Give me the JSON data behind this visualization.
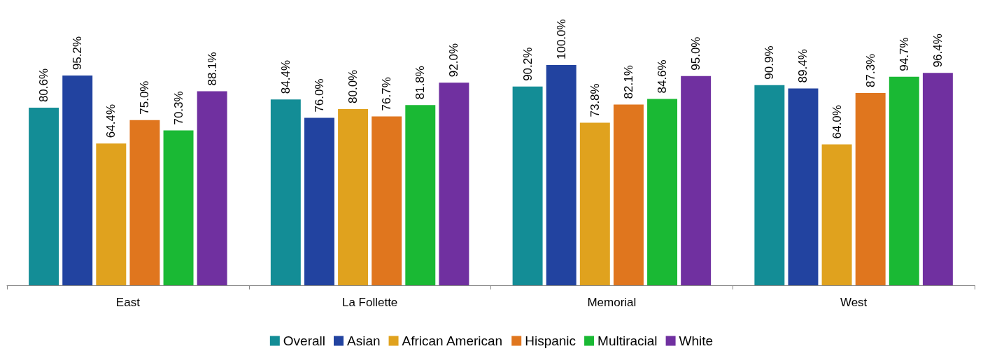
{
  "chart_data": {
    "type": "bar",
    "categories": [
      "East",
      "La Follette",
      "Memorial",
      "West"
    ],
    "series": [
      {
        "name": "Overall",
        "color": "#138d96",
        "values": [
          80.6,
          84.4,
          90.2,
          90.9
        ],
        "value_labels": [
          "80.6%",
          "84.4%",
          "90.2%",
          "90.9%"
        ]
      },
      {
        "name": "Asian",
        "color": "#2243a0",
        "values": [
          95.2,
          76.0,
          100.0,
          89.4
        ],
        "value_labels": [
          "95.2%",
          "76.0%",
          "100.0%",
          "89.4%"
        ]
      },
      {
        "name": "African American",
        "color": "#e0a21e",
        "values": [
          64.4,
          80.0,
          73.8,
          64.0
        ],
        "value_labels": [
          "64.4%",
          "80.0%",
          "73.8%",
          "64.0%"
        ]
      },
      {
        "name": "Hispanic",
        "color": "#e0761e",
        "values": [
          75.0,
          76.7,
          82.1,
          87.3
        ],
        "value_labels": [
          "75.0%",
          "76.7%",
          "82.1%",
          "87.3%"
        ]
      },
      {
        "name": "Multiracial",
        "color": "#1ab934",
        "values": [
          70.3,
          81.8,
          84.6,
          94.7
        ],
        "value_labels": [
          "70.3%",
          "81.8%",
          "84.6%",
          "94.7%"
        ]
      },
      {
        "name": "White",
        "color": "#7030a0",
        "values": [
          88.1,
          92.0,
          95.0,
          96.4
        ],
        "value_labels": [
          "88.1%",
          "92.0%",
          "95.0%",
          "96.4%"
        ]
      }
    ],
    "legend": "bottom",
    "tick_labels": "x"
  }
}
